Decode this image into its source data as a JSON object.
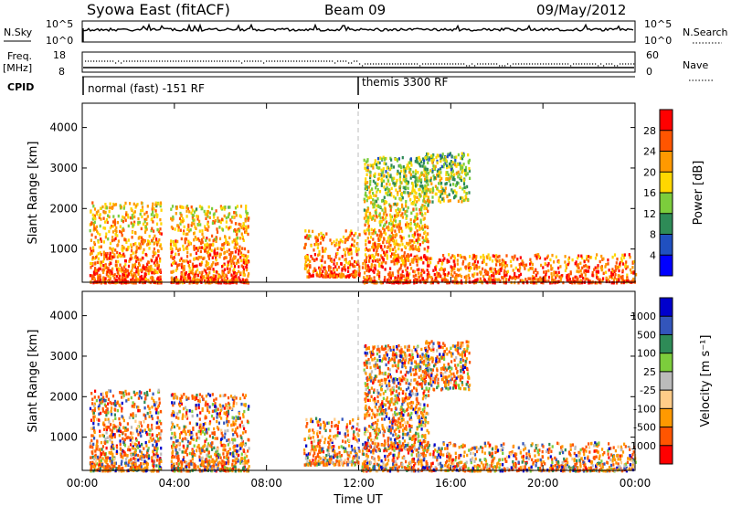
{
  "header": {
    "title": "Syowa East (fitACF)",
    "beam": "Beam 09",
    "date": "09/May/2012"
  },
  "nsky_panel": {
    "left_label": "N.Sky",
    "right_label": "N.Search",
    "left_ticks": [
      "10^5",
      "10^0"
    ],
    "right_ticks": [
      "10^5",
      "10^0"
    ]
  },
  "freq_panel": {
    "left_label_1": "Freq.",
    "left_label_2": "[MHz]",
    "right_label": "Nave",
    "left_ticks": [
      "18",
      "8"
    ],
    "right_ticks": [
      "60",
      "0"
    ]
  },
  "cpid": {
    "label": "CPID",
    "mode_1": "normal (fast) -151 RF",
    "mode_2": "themis 3300 RF"
  },
  "chart_data": [
    {
      "type": "heatmap",
      "name": "power",
      "ylabel": "Slant Range [km]",
      "y_ticks": [
        1000,
        2000,
        3000,
        4000
      ],
      "ylim": [
        180,
        4600
      ],
      "x_ticks": [
        "00:00",
        "04:00",
        "08:00",
        "12:00",
        "16:00",
        "20:00",
        "00:00"
      ],
      "xlim_hours": [
        0,
        24
      ],
      "colorbar_label": "Power [dB]",
      "colorbar_ticks": [
        "28",
        "24",
        "20",
        "16",
        "12",
        "8",
        "4"
      ],
      "colors": [
        "#0000ff",
        "#2050c0",
        "#2e8b57",
        "#7ccd3c",
        "#ffd700",
        "#ff9900",
        "#ff5500",
        "#ff0000"
      ],
      "clusters": [
        {
          "t0": 0.3,
          "t1": 3.4,
          "r0": 200,
          "r1": 2200,
          "level_high_low_range": 1
        },
        {
          "t0": 3.8,
          "t1": 7.2,
          "r0": 200,
          "r1": 2100,
          "level_high_low_range": 1
        },
        {
          "t0": 9.6,
          "t1": 12.0,
          "r0": 350,
          "r1": 1500,
          "level_high_low_range": 1
        },
        {
          "t0": 12.1,
          "t1": 24.0,
          "r0": 200,
          "r1": 900,
          "level_high_low_range": 1
        },
        {
          "t0": 12.2,
          "t1": 15.0,
          "r0": 700,
          "r1": 3300,
          "level_high_low_range": 0
        },
        {
          "t0": 14.8,
          "t1": 16.8,
          "r0": 2200,
          "r1": 3400,
          "level_high_low_range": 0
        }
      ]
    },
    {
      "type": "heatmap",
      "name": "velocity",
      "ylabel": "Slant Range [km]",
      "y_ticks": [
        1000,
        2000,
        3000,
        4000
      ],
      "ylim": [
        180,
        4600
      ],
      "x_ticks": [
        "00:00",
        "04:00",
        "08:00",
        "12:00",
        "16:00",
        "20:00",
        "00:00"
      ],
      "xlim_hours": [
        0,
        24
      ],
      "xlabel": "Time UT",
      "colorbar_label": "Velocity [m s⁻¹]",
      "colorbar_ticks": [
        "1000",
        "500",
        "100",
        "25",
        "-25",
        "-100",
        "-500",
        "-1000"
      ],
      "colors": [
        "#ff0000",
        "#ff5500",
        "#ff9900",
        "#ffcc88",
        "#bbbbbb",
        "#7ccd3c",
        "#2e8b57",
        "#3355bb",
        "#0000cc"
      ],
      "clusters": [
        {
          "t0": 0.3,
          "t1": 3.4,
          "r0": 200,
          "r1": 2200,
          "level_high_low_range": 1
        },
        {
          "t0": 3.8,
          "t1": 7.2,
          "r0": 200,
          "r1": 2100,
          "level_high_low_range": 1
        },
        {
          "t0": 9.6,
          "t1": 12.0,
          "r0": 350,
          "r1": 1500,
          "level_high_low_range": 1
        },
        {
          "t0": 12.1,
          "t1": 24.0,
          "r0": 200,
          "r1": 900,
          "level_high_low_range": 1
        },
        {
          "t0": 12.2,
          "t1": 15.0,
          "r0": 700,
          "r1": 3300,
          "level_high_low_range": 0
        },
        {
          "t0": 14.8,
          "t1": 16.8,
          "r0": 2200,
          "r1": 3400,
          "level_high_low_range": 0
        }
      ]
    }
  ]
}
